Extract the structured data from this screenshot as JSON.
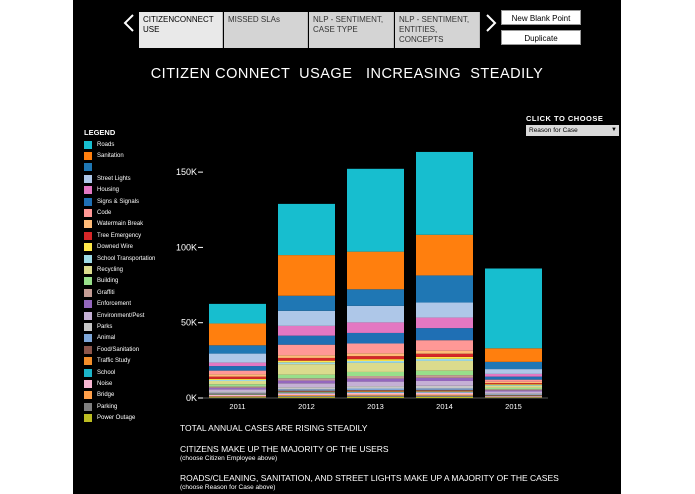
{
  "nav": {
    "prev_icon": "chevron-left-icon",
    "next_icon": "chevron-right-icon"
  },
  "tabs": [
    {
      "label": "CITIZENCONNECT USE",
      "active": true
    },
    {
      "label": "MISSED SLAs",
      "active": false
    },
    {
      "label": "NLP - SENTIMENT, CASE TYPE",
      "active": false
    },
    {
      "label": "NLP - SENTIMENT, ENTITIES, CONCEPTS",
      "active": false
    }
  ],
  "buttons": {
    "new_blank_point": "New Blank Point",
    "duplicate": "Duplicate"
  },
  "title": "CITIZEN CONNECT  USAGE   INCREASING  STEADILY",
  "filter": {
    "label": "CLICK  TO  CHOOSE",
    "selected": "Reason for Case"
  },
  "legend": {
    "title": "LEGEND",
    "items": [
      {
        "label": "Roads",
        "color": "#17becf"
      },
      {
        "label": "Sanitation",
        "color": "#ff7f0e"
      },
      {
        "label": "",
        "color": "#1f77b4"
      },
      {
        "label": "Street Lights",
        "color": "#aec7e8"
      },
      {
        "label": "Housing",
        "color": "#e377c2"
      },
      {
        "label": "Signs & Signals",
        "color": "#1f6fb4"
      },
      {
        "label": "Code",
        "color": "#ff9896"
      },
      {
        "label": "Watermain Break",
        "color": "#ffbb78"
      },
      {
        "label": "Tree Emergency",
        "color": "#d62728"
      },
      {
        "label": "Downed Wire",
        "color": "#ffe84a"
      },
      {
        "label": "School Transportation",
        "color": "#9edae5"
      },
      {
        "label": "Recycling",
        "color": "#dbdb8d"
      },
      {
        "label": "Building",
        "color": "#98df8a"
      },
      {
        "label": "Graffiti",
        "color": "#c49c94"
      },
      {
        "label": "Enforcement",
        "color": "#9467bd"
      },
      {
        "label": "Environment/Pest",
        "color": "#c5b0d5"
      },
      {
        "label": "Parks",
        "color": "#c7c7c7"
      },
      {
        "label": "Animal",
        "color": "#7fa7d9"
      },
      {
        "label": "Food/Sanitation",
        "color": "#8c564b"
      },
      {
        "label": "Traffic Study",
        "color": "#f28e2b"
      },
      {
        "label": "School",
        "color": "#1cb5c9"
      },
      {
        "label": "Noise",
        "color": "#f7b6d2"
      },
      {
        "label": "Bridge",
        "color": "#ff9f4a"
      },
      {
        "label": "Parking",
        "color": "#7f7f7f"
      },
      {
        "label": "Power Outage",
        "color": "#bcbd22"
      }
    ]
  },
  "chart_data": {
    "type": "bar",
    "stacked": true,
    "categories": [
      "2011",
      "2012",
      "2013",
      "2014",
      "2015"
    ],
    "ylim": [
      0,
      170000
    ],
    "yticks": [
      0,
      50000,
      100000,
      150000
    ],
    "ytick_labels": [
      "0K",
      "50K",
      "100K",
      "150K"
    ],
    "series": [
      {
        "name": "Power Outage",
        "color": "#bcbd22",
        "values": [
          400,
          600,
          700,
          700,
          300
        ]
      },
      {
        "name": "Parking",
        "color": "#7f7f7f",
        "values": [
          500,
          800,
          900,
          900,
          300
        ]
      },
      {
        "name": "Bridge",
        "color": "#ff9f4a",
        "values": [
          400,
          600,
          700,
          700,
          200
        ]
      },
      {
        "name": "Noise",
        "color": "#f7b6d2",
        "values": [
          700,
          1200,
          1300,
          1400,
          500
        ]
      },
      {
        "name": "School",
        "color": "#1cb5c9",
        "values": [
          300,
          500,
          500,
          500,
          200
        ]
      },
      {
        "name": "Traffic Study",
        "color": "#f28e2b",
        "values": [
          300,
          500,
          500,
          500,
          200
        ]
      },
      {
        "name": "Food/Sanitation",
        "color": "#8c564b",
        "values": [
          400,
          700,
          700,
          700,
          300
        ]
      },
      {
        "name": "Animal",
        "color": "#7fa7d9",
        "values": [
          500,
          900,
          1000,
          1000,
          400
        ]
      },
      {
        "name": "Parks",
        "color": "#c7c7c7",
        "values": [
          800,
          1400,
          1600,
          1700,
          700
        ]
      },
      {
        "name": "Environment/Pest",
        "color": "#c5b0d5",
        "values": [
          1500,
          2600,
          3000,
          3200,
          1200
        ]
      },
      {
        "name": "Enforcement",
        "color": "#9467bd",
        "values": [
          1000,
          1800,
          2000,
          2100,
          800
        ]
      },
      {
        "name": "Graffiti",
        "color": "#c49c94",
        "values": [
          900,
          1500,
          1700,
          1800,
          700
        ]
      },
      {
        "name": "Building",
        "color": "#98df8a",
        "values": [
          1400,
          2400,
          2700,
          2900,
          900
        ]
      },
      {
        "name": "Recycling",
        "color": "#dbdb8d",
        "values": [
          2200,
          7000,
          6000,
          6500,
          1500
        ]
      },
      {
        "name": "School Transportation",
        "color": "#9edae5",
        "values": [
          700,
          1200,
          1300,
          1400,
          500
        ]
      },
      {
        "name": "Downed Wire",
        "color": "#ffe84a",
        "values": [
          700,
          1100,
          1200,
          1300,
          500
        ]
      },
      {
        "name": "Tree Emergency",
        "color": "#d62728",
        "values": [
          1500,
          1800,
          2000,
          2100,
          700
        ]
      },
      {
        "name": "Watermain Break",
        "color": "#ffbb78",
        "values": [
          1500,
          1800,
          1900,
          2000,
          800
        ]
      },
      {
        "name": "Code",
        "color": "#ff9896",
        "values": [
          2500,
          7000,
          6500,
          7000,
          1500
        ]
      },
      {
        "name": "Signs & Signals",
        "color": "#1f6fb4",
        "values": [
          3000,
          6000,
          7000,
          8000,
          2000
        ]
      },
      {
        "name": "Housing",
        "color": "#e377c2",
        "values": [
          2300,
          6500,
          7000,
          7000,
          1800
        ]
      },
      {
        "name": "Street Lights",
        "color": "#aec7e8",
        "values": [
          6000,
          10000,
          11000,
          10000,
          3200
        ]
      },
      {
        "name": "",
        "color": "#1f77b4",
        "values": [
          5500,
          10000,
          11000,
          18000,
          4800
        ]
      },
      {
        "name": "Sanitation",
        "color": "#ff7f0e",
        "values": [
          14500,
          27000,
          25000,
          27000,
          9000
        ]
      },
      {
        "name": "Roads",
        "color": "#17becf",
        "values": [
          13000,
          34000,
          55000,
          55000,
          53000
        ]
      }
    ]
  },
  "notes": [
    {
      "text": "TOTAL ANNUAL CASES ARE RISING STEADILY",
      "sub": ""
    },
    {
      "text": "CITIZENS MAKE UP THE MAJORITY OF THE USERS",
      "sub": "(choose Citizen Employee above)"
    },
    {
      "text": "ROADS/CLEANING, SANITATION, AND STREET LIGHTS MAKE UP A MAJORITY OF THE CASES",
      "sub": "(choose Reason for Case above)"
    }
  ]
}
